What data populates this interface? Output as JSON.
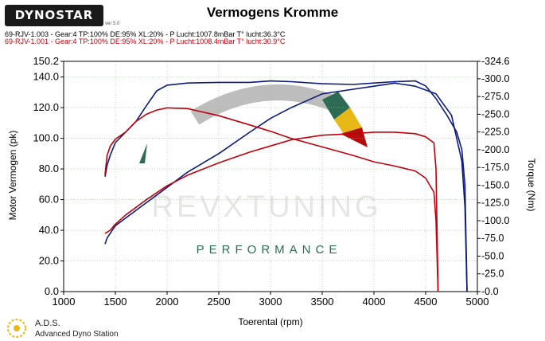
{
  "header": {
    "brand": "DYNOSTAR",
    "brand_sub": "ver 5.0",
    "title": "Vermogens Kromme",
    "runs": [
      {
        "label": "69-RJV-1.003 - Gear:4 TP:100% DE:95% XL:20%   - P Lucht:1007.8mBar T° lucht:36.3°C",
        "color": "#000000"
      },
      {
        "label": "69-RJV-1.001 - Gear:4 TP:100% DE:95% XL:20%   - P Lucht:1008.4mBar T° lucht:30.9°C",
        "color": "#c0000b"
      }
    ]
  },
  "watermark": {
    "brand": "REVXTUNING",
    "tagline": "PERFORMANCE",
    "accent": "#2e6b55"
  },
  "footer": {
    "brand": "A.D.S.",
    "name": "Advanced Dyno Station"
  },
  "chart_data": {
    "type": "line",
    "title": "Vermogens Kromme",
    "xlabel": "Toerental (rpm)",
    "ylabel": "Motor Vermogen (pk)",
    "y2label": "Torque (Nm)",
    "xlim": [
      1000,
      5000
    ],
    "ylim": [
      0,
      150.2
    ],
    "y2lim": [
      0,
      324.6
    ],
    "x_ticks": [
      1000,
      1500,
      2000,
      2500,
      3000,
      3500,
      4000,
      4500,
      5000
    ],
    "y_ticks": [
      0.0,
      20.0,
      40.0,
      60.0,
      80.0,
      100.0,
      120.0,
      140.0,
      150.2
    ],
    "y2_ticks": [
      0.0,
      25.0,
      50.0,
      75.0,
      100.0,
      125.0,
      150.0,
      175.0,
      200.0,
      225.0,
      250.0,
      275.0,
      300.0,
      324.6
    ],
    "grid": true,
    "series": [
      {
        "color": "#0b1a80",
        "axis": "y",
        "x": [
          1400,
          1420,
          1500,
          1600,
          1800,
          2000,
          2200,
          2500,
          2800,
          3000,
          3200,
          3500,
          3800,
          4000,
          4200,
          4400,
          4600,
          4750,
          4850,
          4880,
          4900
        ],
        "values": [
          31,
          35,
          43,
          48,
          58,
          68,
          78,
          90,
          104,
          113,
          120,
          129,
          132,
          134,
          136,
          134,
          129,
          115,
          85,
          55,
          0
        ]
      },
      {
        "color": "#0b1a80",
        "axis": "y2",
        "x": [
          1400,
          1420,
          1450,
          1500,
          1600,
          1700,
          1800,
          1900,
          2000,
          2200,
          2500,
          2800,
          3000,
          3200,
          3500,
          3800,
          4000,
          4200,
          4400,
          4500,
          4600,
          4700,
          4800,
          4850,
          4880,
          4900
        ],
        "values": [
          162,
          178,
          192,
          210,
          225,
          240,
          262,
          283,
          291,
          294,
          295,
          295,
          297,
          296,
          293,
          292,
          294,
          296,
          297,
          290,
          272,
          250,
          225,
          200,
          150,
          0
        ]
      },
      {
        "color": "#c0000b",
        "axis": "y",
        "x": [
          1400,
          1450,
          1500,
          1600,
          1800,
          2000,
          2200,
          2500,
          2800,
          3000,
          3200,
          3500,
          3800,
          4000,
          4200,
          4400,
          4500,
          4580,
          4600,
          4610,
          4620
        ],
        "values": [
          38,
          40,
          44,
          50,
          60,
          69,
          76,
          84,
          91,
          95,
          99,
          102,
          103,
          104,
          104,
          103,
          101,
          97,
          80,
          40,
          0
        ]
      },
      {
        "color": "#c0000b",
        "axis": "y2",
        "x": [
          1400,
          1420,
          1450,
          1500,
          1600,
          1700,
          1800,
          1900,
          2000,
          2200,
          2500,
          2800,
          3000,
          3200,
          3500,
          3800,
          4000,
          4200,
          4400,
          4500,
          4580,
          4600,
          4610,
          4620
        ],
        "values": [
          165,
          192,
          205,
          215,
          225,
          240,
          250,
          256,
          259,
          258,
          248,
          235,
          226,
          216,
          204,
          192,
          183,
          177,
          170,
          160,
          140,
          100,
          50,
          0
        ]
      }
    ]
  }
}
